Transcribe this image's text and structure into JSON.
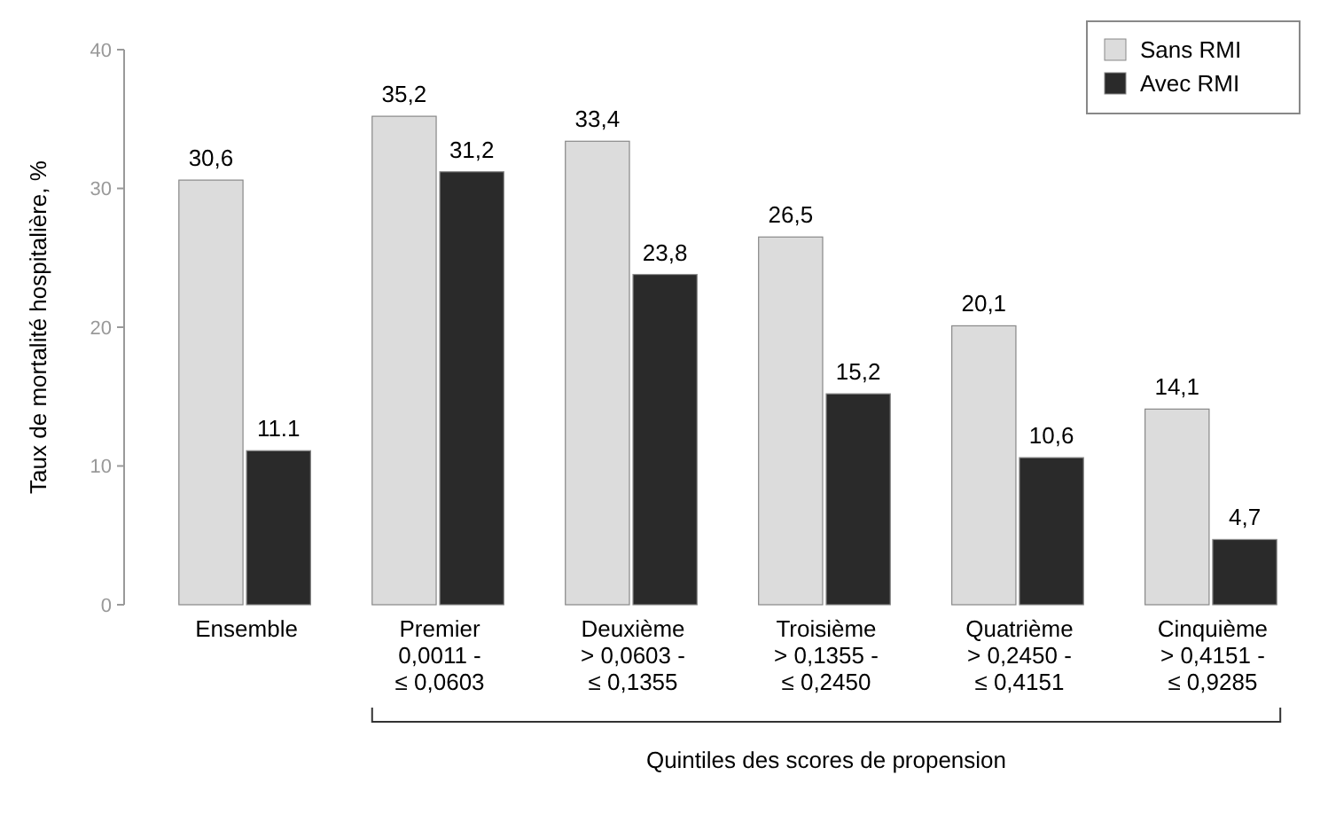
{
  "chart_data": {
    "type": "bar",
    "ylabel": "Taux de mortalité hospitalière, %",
    "xlabel": "Quintiles des scores de propension",
    "categories": [
      "Ensemble",
      "Premier\n0,0011 -\n≤ 0,0603",
      "Deuxième\n> 0,0603 -\n≤ 0,1355",
      "Troisième\n> 0,1355 -\n≤ 0,2450",
      "Quatrième\n> 0,2450 -\n≤ 0,4151",
      "Cinquième\n> 0,4151 -\n≤ 0,9285"
    ],
    "series": [
      {
        "name": "Sans RMI",
        "color": "#dcdcdc",
        "values": [
          30.6,
          35.2,
          33.4,
          26.5,
          20.1,
          14.1
        ],
        "value_labels": [
          "30,6",
          "35,2",
          "33,4",
          "26,5",
          "20,1",
          "14,1"
        ]
      },
      {
        "name": "Avec RMI",
        "color": "#2a2a2a",
        "values": [
          11.1,
          31.2,
          23.8,
          15.2,
          10.6,
          4.7
        ],
        "value_labels": [
          "11.1",
          "31,2",
          "23,8",
          "15,2",
          "10,6",
          "4,7"
        ]
      }
    ],
    "ylim": [
      0,
      40
    ],
    "yticks": [
      0,
      10,
      20,
      30,
      40
    ],
    "grid": false,
    "legend": "top right"
  }
}
